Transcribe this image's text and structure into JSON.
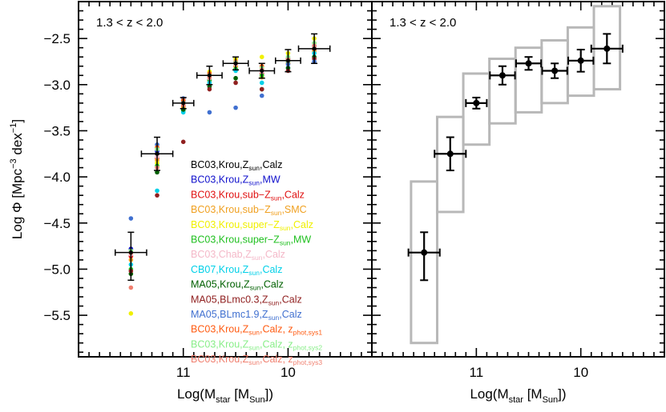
{
  "chart_data": [
    {
      "type": "scatter",
      "panel": "left",
      "title": "1.3 < z < 2.0",
      "xlabel_main": "Log(M",
      "xlabel_sub1": "star",
      "xlabel_mid": " [M",
      "xlabel_sub2": "Sun",
      "xlabel_end": "])",
      "ylabel_main": "Log Φ [Mpc",
      "ylabel_sup1": "−3",
      "ylabel_mid": " dex",
      "ylabel_sup2": "−1",
      "ylabel_end": "]",
      "xlim": [
        12.0,
        9.2
      ],
      "ylim": [
        -5.95,
        -2.1
      ],
      "x_axis_orientation": "decreasing to the right",
      "x_ticks": [
        {
          "value": 11.0,
          "label": "11"
        },
        {
          "value": 10.0,
          "label": "10"
        }
      ],
      "y_ticks": [
        {
          "value": -2.5,
          "label": "−2.5"
        },
        {
          "value": -3.0,
          "label": "−3.0"
        },
        {
          "value": -3.5,
          "label": "−3.5"
        },
        {
          "value": -4.0,
          "label": "−4.0"
        },
        {
          "value": -4.5,
          "label": "−4.5"
        },
        {
          "value": -5.0,
          "label": "−5.0"
        },
        {
          "value": -5.5,
          "label": "−5.5"
        }
      ],
      "mass_bins_x": [
        11.5,
        11.25,
        11.0,
        10.75,
        10.5,
        10.25,
        10.0,
        9.75
      ],
      "measurements": {
        "y": [
          -4.82,
          -3.75,
          -3.2,
          -2.9,
          -2.77,
          -2.85,
          -2.74,
          -2.61
        ],
        "xerr": [
          0.15,
          0.15,
          0.1,
          0.12,
          0.12,
          0.12,
          0.12,
          0.15
        ],
        "yerr_low": [
          0.3,
          0.18,
          0.06,
          0.1,
          0.07,
          0.08,
          0.12,
          0.16
        ],
        "yerr_high": [
          0.22,
          0.18,
          0.06,
          0.1,
          0.07,
          0.08,
          0.12,
          0.16
        ]
      },
      "series": [
        {
          "label_a": "BC03,Krou,Z",
          "sub": "sun",
          "label_b": ",Calz",
          "label_c": "",
          "color": "#000000",
          "y": [
            -4.82,
            -3.75,
            -3.2,
            -2.9,
            -2.77,
            -2.85,
            -2.74,
            -2.61
          ]
        },
        {
          "label_a": "BC03,Krou,Z",
          "sub": "sun",
          "label_b": ",MW",
          "label_c": "",
          "color": "#1010cc",
          "y": [
            -4.78,
            -3.72,
            -3.18,
            -2.9,
            -2.76,
            -2.84,
            -2.72,
            -2.58
          ]
        },
        {
          "label_a": "BC03,Krou,sub−Z",
          "sub": "sun",
          "label_b": ",Calz",
          "label_c": "",
          "color": "#e01010",
          "y": [
            -4.86,
            -3.8,
            -3.23,
            -2.95,
            -2.8,
            -2.88,
            -2.77,
            -2.62
          ]
        },
        {
          "label_a": "BC03,Krou,sub−Z",
          "sub": "sun",
          "label_b": ",SMC",
          "label_c": "",
          "color": "#f0a020",
          "y": [
            -4.9,
            -3.82,
            -3.25,
            -2.96,
            -2.8,
            -2.92,
            -2.77,
            -2.64
          ]
        },
        {
          "label_a": "BC03,Krou,super−Z",
          "sub": "sun",
          "label_b": ",Calz",
          "label_c": "",
          "color": "#f0f000",
          "y": [
            -5.48,
            -3.85,
            -3.2,
            -2.86,
            -2.72,
            -2.7,
            -2.66,
            -2.5
          ]
        },
        {
          "label_a": "BC03,Krou,super−Z",
          "sub": "sun",
          "label_b": ",MW",
          "label_c": "",
          "color": "#20c020",
          "y": [
            -5.0,
            -3.88,
            -3.28,
            -2.95,
            -2.83,
            -2.9,
            -2.75,
            -2.6
          ]
        },
        {
          "label_a": "BC03,Chab,Z",
          "sub": "sun",
          "label_b": ",Calz",
          "label_c": "",
          "color": "#f4b8c8",
          "y": [
            -4.84,
            -3.78,
            -3.2,
            -2.93,
            -2.78,
            -2.86,
            -2.74,
            -2.6
          ]
        },
        {
          "label_a": "CB07,Krou,Z",
          "sub": "sun",
          "label_b": ",Calz",
          "label_c": "",
          "color": "#00d0e8",
          "y": [
            -4.95,
            -4.15,
            -3.3,
            -2.98,
            -2.85,
            -2.98,
            -2.82,
            -2.66
          ]
        },
        {
          "label_a": "MA05,Krou,Z",
          "sub": "sun",
          "label_b": ",Calz",
          "label_c": "",
          "color": "#006000",
          "y": [
            -5.05,
            -3.95,
            -3.27,
            -3.02,
            -2.93,
            -3.05,
            -2.82,
            -2.7
          ]
        },
        {
          "label_a": "MA05,BLmc0.3,Z",
          "sub": "sun",
          "label_b": ",Calz",
          "label_c": "",
          "color": "#902020",
          "y": [
            -5.02,
            -4.2,
            -3.62,
            -3.05,
            -2.98,
            -3.05,
            -2.85,
            -2.72
          ]
        },
        {
          "label_a": "MA05,BLmc1.9,Z",
          "sub": "sun",
          "label_b": ",Calz",
          "label_c": "",
          "color": "#4070d0",
          "y": [
            -4.45,
            -3.65,
            -3.15,
            -3.3,
            -3.25,
            -3.12,
            -2.78,
            -2.75
          ]
        },
        {
          "label_a": "BC03,Krou,Z",
          "sub": "sun",
          "label_b": ",Calz, ",
          "label_c": "z",
          "sub2": "phot,sys1",
          "color": "#ff5a10",
          "y": [
            -4.82,
            -3.68,
            -3.17,
            -2.88,
            -2.75,
            -2.8,
            -2.72,
            -2.55
          ]
        },
        {
          "label_a": "BC03,Krou,Z",
          "sub": "sun",
          "label_b": ",Calz, ",
          "label_c": "z",
          "sub2": "phot,sys2",
          "color": "#88ee88",
          "y": [
            -4.8,
            -3.7,
            -3.2,
            -2.9,
            -2.76,
            -2.82,
            -2.7,
            -2.55
          ]
        },
        {
          "label_a": "BC03,Krou,Z",
          "sub": "sun",
          "label_b": ",Calz, ",
          "label_c": "z",
          "sub2": "phot,sys3",
          "color": "#f08070",
          "y": [
            -5.2,
            -3.9,
            -3.22,
            -2.92,
            -2.77,
            -2.84,
            -2.73,
            -2.58
          ]
        }
      ]
    },
    {
      "type": "scatter",
      "panel": "right",
      "title": "1.3 < z < 2.0",
      "xlabel_main": "Log(M",
      "xlabel_sub1": "star",
      "xlabel_mid": " [M",
      "xlabel_sub2": "Sun",
      "xlabel_end": "])",
      "xlim": [
        12.0,
        9.2
      ],
      "ylim": [
        -5.95,
        -2.1
      ],
      "x_ticks": [
        {
          "value": 11.0,
          "label": "11"
        },
        {
          "value": 10.0,
          "label": "10"
        }
      ],
      "mass_bins_x": [
        11.5,
        11.25,
        11.0,
        10.75,
        10.5,
        10.25,
        10.0,
        9.75
      ],
      "measurements": {
        "y": [
          -4.82,
          -3.75,
          -3.2,
          -2.9,
          -2.77,
          -2.85,
          -2.74,
          -2.61
        ],
        "xerr": [
          0.15,
          0.15,
          0.1,
          0.12,
          0.12,
          0.12,
          0.12,
          0.15
        ],
        "yerr_low": [
          0.3,
          0.18,
          0.06,
          0.1,
          0.07,
          0.08,
          0.12,
          0.16
        ],
        "yerr_high": [
          0.22,
          0.18,
          0.06,
          0.1,
          0.07,
          0.08,
          0.12,
          0.16
        ]
      },
      "systematic_boxes": [
        {
          "x_low": 11.625,
          "x_high": 11.375,
          "y_low": -5.8,
          "y_high": -4.05
        },
        {
          "x_low": 11.375,
          "x_high": 11.125,
          "y_low": -4.38,
          "y_high": -3.35
        },
        {
          "x_low": 11.125,
          "x_high": 10.875,
          "y_low": -3.65,
          "y_high": -2.88
        },
        {
          "x_low": 10.875,
          "x_high": 10.625,
          "y_low": -3.42,
          "y_high": -2.72
        },
        {
          "x_low": 10.625,
          "x_high": 10.375,
          "y_low": -3.3,
          "y_high": -2.6
        },
        {
          "x_low": 10.375,
          "x_high": 10.125,
          "y_low": -3.2,
          "y_high": -2.52
        },
        {
          "x_low": 10.125,
          "x_high": 9.875,
          "y_low": -3.12,
          "y_high": -2.38
        },
        {
          "x_low": 9.875,
          "x_high": 9.625,
          "y_low": -3.05,
          "y_high": -2.15
        }
      ]
    }
  ]
}
